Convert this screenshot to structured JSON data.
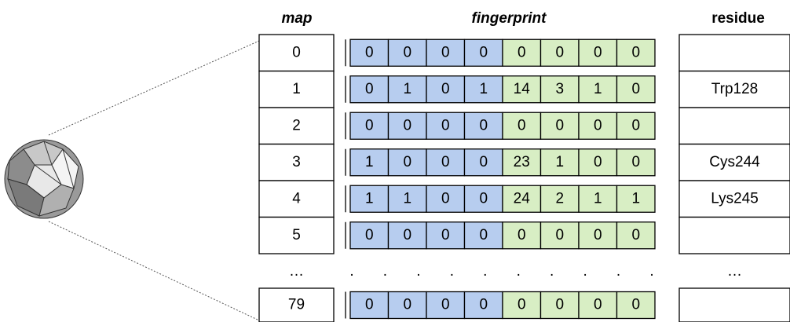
{
  "headers": {
    "map": "map",
    "fingerprint": "fingerprint",
    "residue": "residue"
  },
  "rows": [
    {
      "map": "0",
      "fingerprint": [
        0,
        0,
        0,
        0,
        0,
        0,
        0,
        0
      ]
    },
    {
      "map": "1",
      "fingerprint": [
        0,
        1,
        0,
        1,
        14,
        3,
        1,
        0
      ],
      "residue": "Trp128"
    },
    {
      "map": "2",
      "fingerprint": [
        0,
        0,
        0,
        0,
        0,
        0,
        0,
        0
      ]
    },
    {
      "map": "3",
      "fingerprint": [
        1,
        0,
        0,
        0,
        23,
        1,
        0,
        0
      ],
      "residue": "Cys244"
    },
    {
      "map": "4",
      "fingerprint": [
        1,
        1,
        0,
        0,
        24,
        2,
        1,
        1
      ],
      "residue": "Lys245"
    },
    {
      "map": "5",
      "fingerprint": [
        0,
        0,
        0,
        0,
        0,
        0,
        0,
        0
      ]
    }
  ],
  "gap": {
    "map": "…",
    "fingerprint": [
      ".",
      ".",
      ".",
      ".",
      ".",
      ".",
      ".",
      ".",
      ".",
      "."
    ],
    "residue": "…"
  },
  "last_row": {
    "map": "79",
    "fingerprint": [
      0,
      0,
      0,
      0,
      0,
      0,
      0,
      0
    ]
  }
}
